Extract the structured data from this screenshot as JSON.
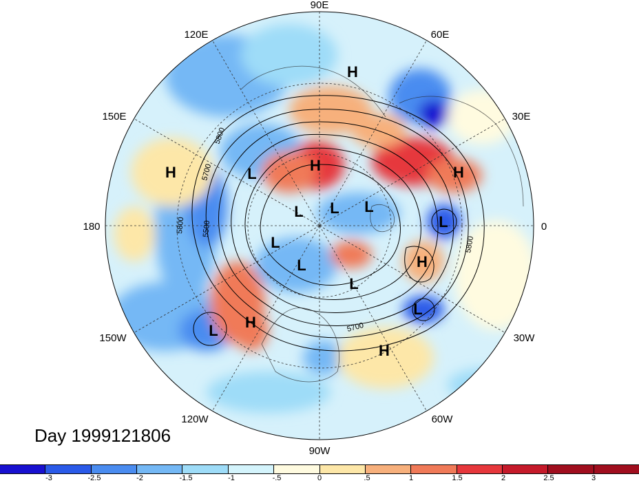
{
  "map": {
    "lon_labels": {
      "e90": "90E",
      "e60": "60E",
      "e30": "30E",
      "zero": "0",
      "w30": "30W",
      "w60": "60W",
      "w90": "90W",
      "w120": "120W",
      "w150": "150W",
      "lon180": "180",
      "e150": "150E",
      "e120": "120E"
    },
    "pressure_centers": [
      {
        "type": "H",
        "region": "siberia-north"
      },
      {
        "type": "H",
        "region": "kara-sea"
      },
      {
        "type": "H",
        "region": "scandinavia-east"
      },
      {
        "type": "H",
        "region": "north-pacific-west"
      },
      {
        "type": "H",
        "region": "gulf-of-alaska"
      },
      {
        "type": "H",
        "region": "north-atlantic-east"
      },
      {
        "type": "H",
        "region": "central-atlantic"
      },
      {
        "type": "L",
        "region": "east-siberia"
      },
      {
        "type": "L",
        "region": "arctic-1"
      },
      {
        "type": "L",
        "region": "arctic-2"
      },
      {
        "type": "L",
        "region": "arctic-3"
      },
      {
        "type": "L",
        "region": "alaska"
      },
      {
        "type": "L",
        "region": "northern-canada"
      },
      {
        "type": "L",
        "region": "labrador"
      },
      {
        "type": "L",
        "region": "iceland"
      },
      {
        "type": "L",
        "region": "azores"
      },
      {
        "type": "L",
        "region": "central-pacific"
      }
    ],
    "contour_labels": [
      "5800",
      "5700",
      "5800",
      "5500",
      "5800",
      "5700"
    ]
  },
  "date_label": "Day 1999121806",
  "colorbar": {
    "colors": [
      "#1810d0",
      "#2a5ae8",
      "#4a8cf0",
      "#74b8f5",
      "#9edcf8",
      "#d4f4fc",
      "#fffbe0",
      "#fde7a8",
      "#f7b07c",
      "#f07a58",
      "#e6373c",
      "#c51a2a",
      "#a00e1e"
    ],
    "labels": [
      "-3",
      "-2.5",
      "-2",
      "-1.5",
      "-1",
      "-.5",
      "0",
      ".5",
      "1",
      "1.5",
      "2",
      "2.5",
      "3"
    ]
  }
}
